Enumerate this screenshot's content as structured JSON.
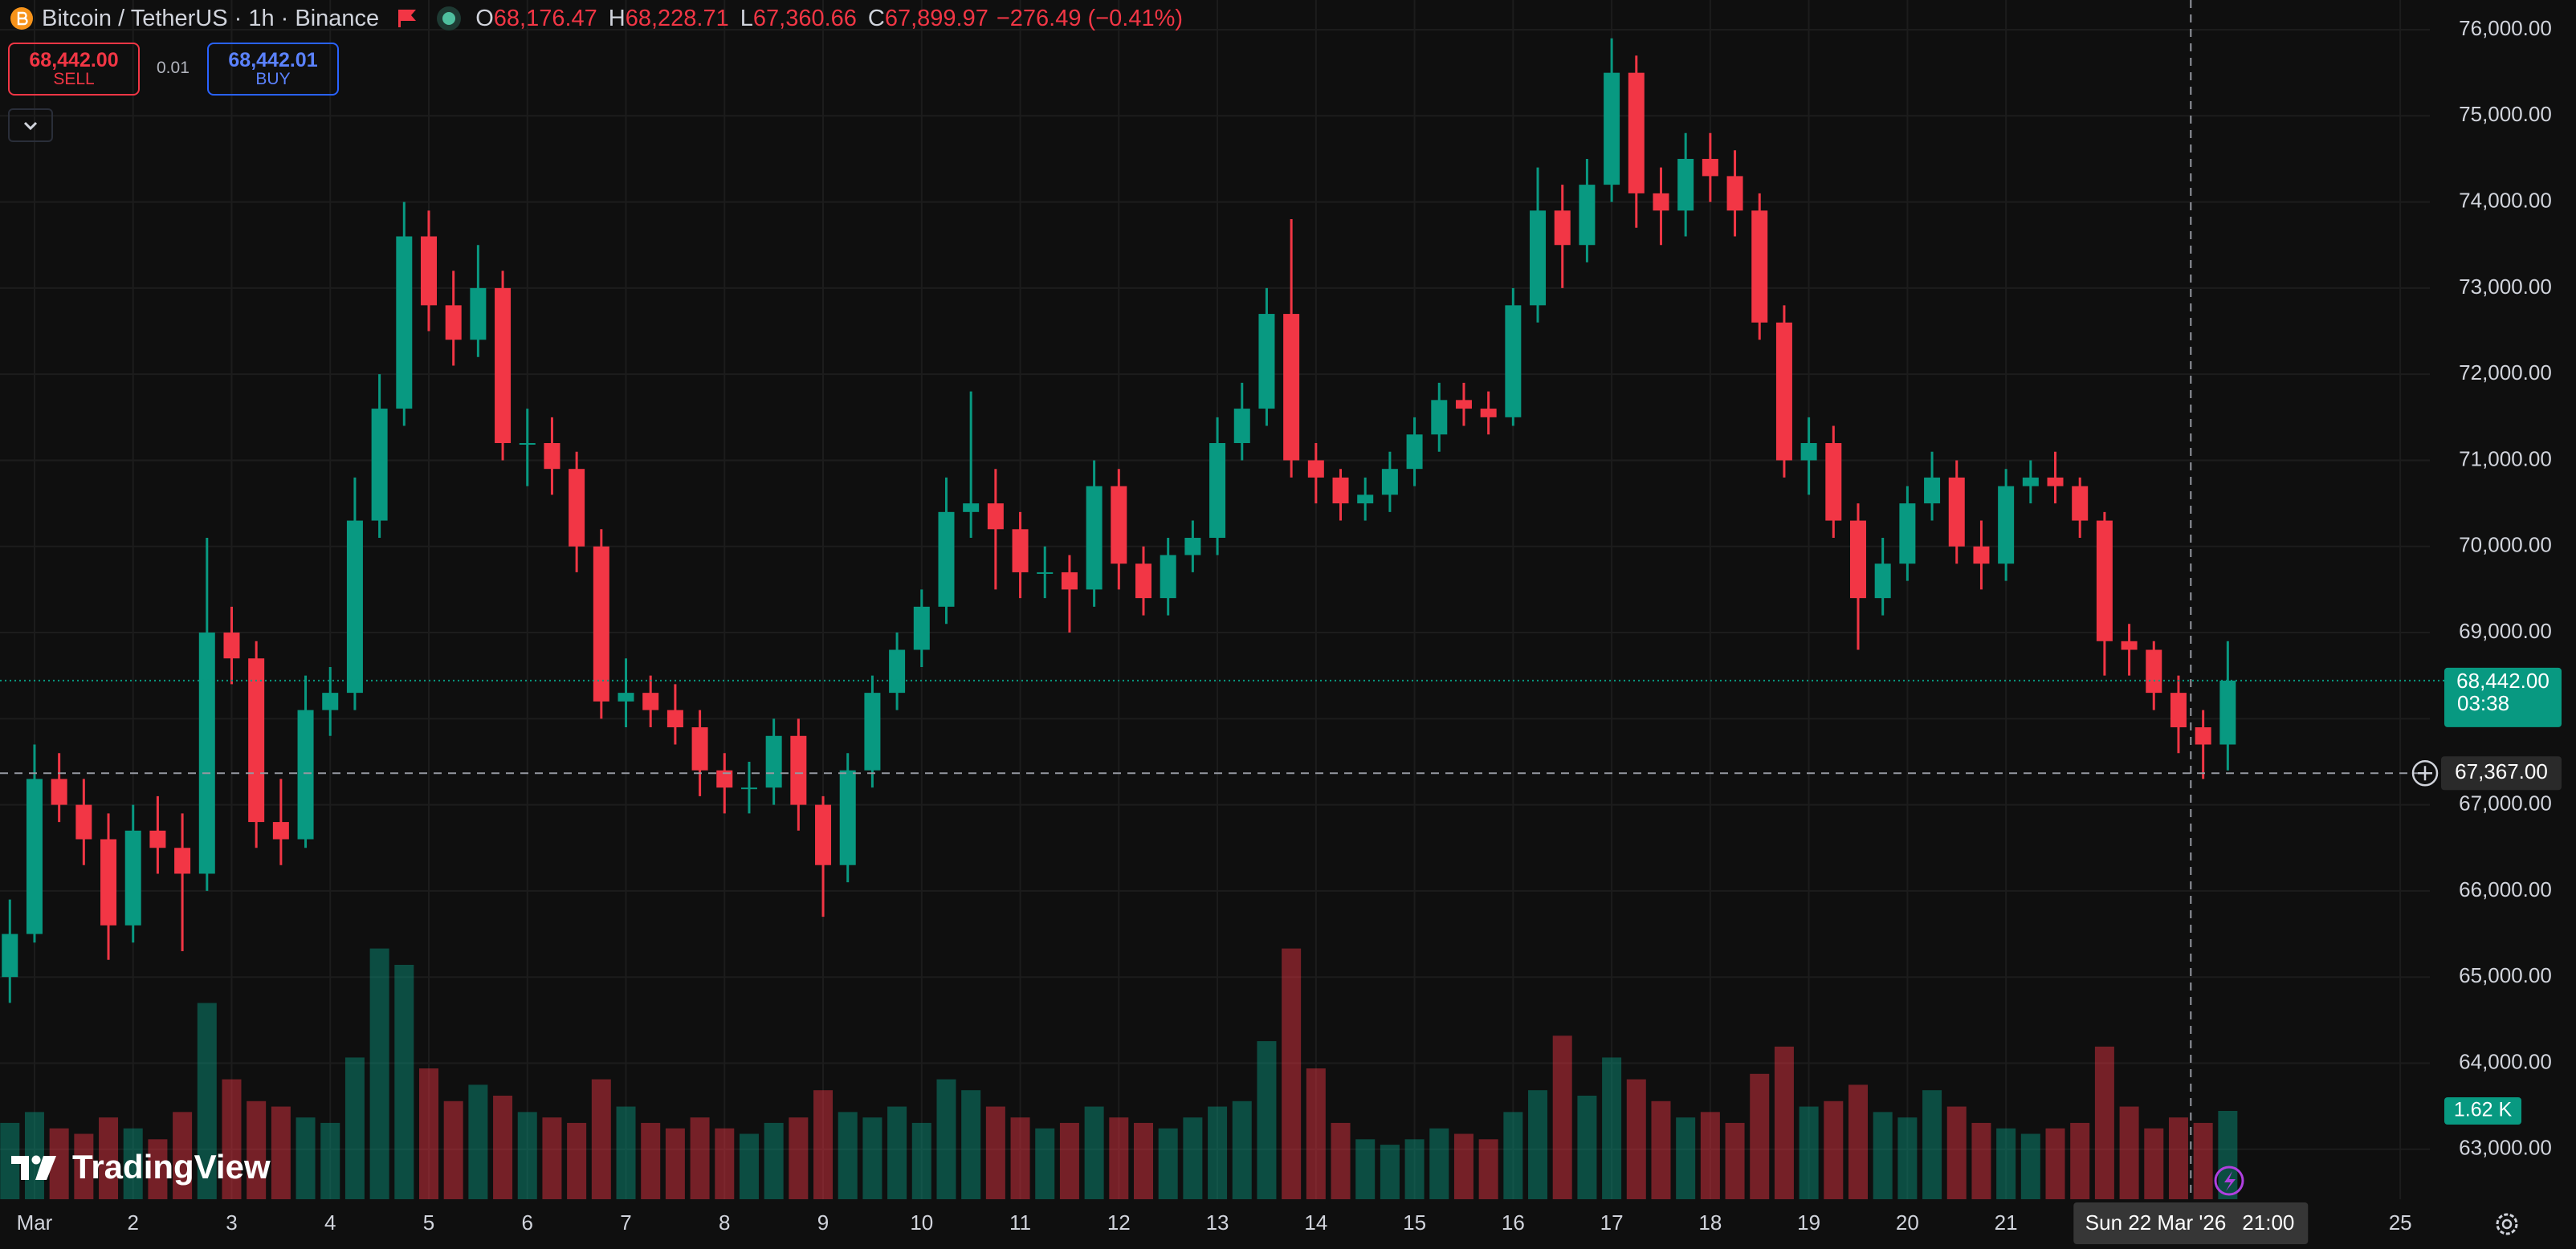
{
  "header": {
    "symbol": "Bitcoin / TetherUS · 1h · Binance",
    "ohlc": [
      {
        "label": "O",
        "value": "68,176.47"
      },
      {
        "label": "H",
        "value": "68,228.71"
      },
      {
        "label": "L",
        "value": "67,360.66"
      },
      {
        "label": "C",
        "value": "67,899.97"
      }
    ],
    "change": "−276.49 (−0.41%)"
  },
  "trade": {
    "sell": {
      "price": "68,442.00",
      "label": "SELL"
    },
    "spread": "0.01",
    "buy": {
      "price": "68,442.01",
      "label": "BUY"
    }
  },
  "branding": "TradingView",
  "chart_data": {
    "type": "candlestick",
    "x": [
      0.75,
      1,
      1.25,
      1.5,
      1.75,
      2,
      2.25,
      2.5,
      2.75,
      3,
      3.25,
      3.5,
      3.75,
      4,
      4.25,
      4.5,
      4.75,
      5,
      5.25,
      5.5,
      5.75,
      6,
      6.25,
      6.5,
      6.75,
      7,
      7.25,
      7.5,
      7.75,
      8,
      8.25,
      8.5,
      8.75,
      9,
      9.25,
      9.5,
      9.75,
      10,
      10.25,
      10.5,
      10.75,
      11,
      11.25,
      11.5,
      11.75,
      12,
      12.25,
      12.5,
      12.75,
      13,
      13.25,
      13.5,
      13.75,
      14,
      14.25,
      14.5,
      14.75,
      15,
      15.25,
      15.5,
      15.75,
      16,
      16.25,
      16.5,
      16.75,
      17,
      17.25,
      17.5,
      17.75,
      18,
      18.25,
      18.5,
      18.75,
      19,
      19.25,
      19.5,
      19.75,
      20,
      20.25,
      20.5,
      20.75,
      21,
      21.25,
      21.5,
      21.75,
      22,
      22.25,
      22.5,
      22.75,
      23,
      23.25
    ],
    "open": [
      65000,
      65500,
      67300,
      67000,
      66600,
      65600,
      66700,
      66500,
      66200,
      69000,
      68700,
      66800,
      66600,
      68100,
      68300,
      70300,
      71600,
      73600,
      72800,
      72400,
      73000,
      71200,
      71200,
      70900,
      70000,
      68200,
      68300,
      68100,
      67900,
      67400,
      67200,
      67200,
      67800,
      67000,
      66300,
      67400,
      68300,
      68800,
      69300,
      70400,
      70500,
      70200,
      69700,
      69700,
      69500,
      70700,
      69800,
      69400,
      69900,
      70100,
      71200,
      71600,
      72700,
      71000,
      70800,
      70500,
      70600,
      70900,
      71300,
      71700,
      71600,
      71500,
      72800,
      73900,
      73500,
      74200,
      75500,
      74100,
      73900,
      74500,
      74300,
      73900,
      72600,
      71000,
      71200,
      70300,
      69400,
      69800,
      70500,
      70800,
      70000,
      69800,
      70700,
      70800,
      70700,
      70300,
      68900,
      68800,
      68300,
      67900,
      67700
    ],
    "high": [
      65900,
      67700,
      67600,
      67300,
      66900,
      67000,
      67100,
      66900,
      70100,
      69300,
      68900,
      67300,
      68500,
      68600,
      70800,
      72000,
      74000,
      73900,
      73200,
      73500,
      73200,
      71600,
      71500,
      71100,
      70200,
      68700,
      68500,
      68400,
      68100,
      67600,
      67500,
      68000,
      68000,
      67100,
      67600,
      68500,
      69000,
      69500,
      70800,
      71800,
      70900,
      70400,
      70000,
      69900,
      71000,
      70900,
      70000,
      70100,
      70300,
      71500,
      71900,
      73000,
      73800,
      71200,
      70900,
      70800,
      71100,
      71500,
      71900,
      71900,
      71800,
      73000,
      74400,
      74200,
      74500,
      75900,
      75700,
      74400,
      74800,
      74800,
      74600,
      74100,
      72800,
      71500,
      71400,
      70500,
      70100,
      70700,
      71100,
      71000,
      70300,
      70900,
      71000,
      71100,
      70800,
      70400,
      69100,
      68900,
      68500,
      68100,
      68900
    ],
    "low": [
      64700,
      65400,
      66800,
      66300,
      65200,
      65400,
      66200,
      65300,
      66000,
      68400,
      66500,
      66300,
      66500,
      67800,
      68100,
      70100,
      71400,
      72500,
      72100,
      72200,
      71000,
      70700,
      70600,
      69700,
      68000,
      67900,
      67900,
      67700,
      67100,
      66900,
      66900,
      67000,
      66700,
      65700,
      66100,
      67200,
      68100,
      68600,
      69100,
      70100,
      69500,
      69400,
      69400,
      69000,
      69300,
      69500,
      69200,
      69200,
      69700,
      69900,
      71000,
      71400,
      70800,
      70500,
      70300,
      70300,
      70400,
      70700,
      71100,
      71400,
      71300,
      71400,
      72600,
      73000,
      73300,
      74000,
      73700,
      73500,
      73600,
      74000,
      73600,
      72400,
      70800,
      70600,
      70100,
      68800,
      69200,
      69600,
      70300,
      69800,
      69500,
      69600,
      70500,
      70500,
      70100,
      68500,
      68500,
      68100,
      67600,
      67300,
      67400
    ],
    "close": [
      65500,
      67300,
      67000,
      66600,
      65600,
      66700,
      66500,
      66200,
      69000,
      68700,
      66800,
      66600,
      68100,
      68300,
      70300,
      71600,
      73600,
      72800,
      72400,
      73000,
      71200,
      71200,
      70900,
      70000,
      68200,
      68300,
      68100,
      67900,
      67400,
      67200,
      67200,
      67800,
      67000,
      66300,
      67400,
      68300,
      68800,
      69300,
      70400,
      70500,
      70200,
      69700,
      69700,
      69500,
      70700,
      69800,
      69400,
      69900,
      70100,
      71200,
      71600,
      72700,
      71000,
      70800,
      70500,
      70600,
      70900,
      71300,
      71700,
      71600,
      71500,
      72800,
      73900,
      73500,
      74200,
      75500,
      74100,
      73900,
      74500,
      74300,
      73900,
      72600,
      71000,
      71200,
      70300,
      69400,
      69800,
      70500,
      70800,
      70000,
      69800,
      70700,
      70800,
      70700,
      70300,
      68900,
      68800,
      68300,
      67900,
      67700,
      68442
    ],
    "volume": [
      1400,
      1600,
      1300,
      1200,
      1500,
      1300,
      1100,
      1600,
      3600,
      2200,
      1800,
      1700,
      1500,
      1400,
      2600,
      4600,
      4300,
      2400,
      1800,
      2100,
      1900,
      1600,
      1500,
      1400,
      2200,
      1700,
      1400,
      1300,
      1500,
      1300,
      1200,
      1400,
      1500,
      2000,
      1600,
      1500,
      1700,
      1400,
      2200,
      2000,
      1700,
      1500,
      1300,
      1400,
      1700,
      1500,
      1400,
      1300,
      1500,
      1700,
      1800,
      2900,
      4600,
      2400,
      1400,
      1100,
      1000,
      1100,
      1300,
      1200,
      1100,
      1600,
      2000,
      3000,
      1900,
      2600,
      2200,
      1800,
      1500,
      1600,
      1400,
      2300,
      2800,
      1700,
      1800,
      2100,
      1600,
      1500,
      2000,
      1700,
      1400,
      1300,
      1200,
      1300,
      1400,
      2800,
      1700,
      1300,
      1500,
      1400,
      1620
    ],
    "up_color": "#089981",
    "down_color": "#f23645",
    "grid": true,
    "xlim": [
      0.65,
      25.3
    ],
    "ylim": [
      62420,
      76345
    ],
    "volume_lim": [
      0,
      22000
    ],
    "xticks": [
      {
        "value": 1,
        "label": "Mar"
      },
      2,
      3,
      4,
      5,
      6,
      7,
      8,
      9,
      10,
      11,
      12,
      13,
      14,
      15,
      16,
      17,
      18,
      19,
      20,
      21,
      25
    ],
    "yticks": [
      {
        "value": 63000,
        "label": "63,000.00"
      },
      {
        "value": 64000,
        "label": "64,000.00"
      },
      {
        "value": 65000,
        "label": "65,000.00"
      },
      {
        "value": 66000,
        "label": "66,000.00"
      },
      {
        "value": 67000,
        "label": "67,000.00"
      },
      {
        "value": 68000,
        "label": "68,000.00"
      },
      {
        "value": 69000,
        "label": "69,000.00"
      },
      {
        "value": 70000,
        "label": "70,000.00"
      },
      {
        "value": 71000,
        "label": "71,000.00"
      },
      {
        "value": 72000,
        "label": "72,000.00"
      },
      {
        "value": 73000,
        "label": "73,000.00"
      },
      {
        "value": 74000,
        "label": "74,000.00"
      },
      {
        "value": 75000,
        "label": "75,000.00"
      },
      {
        "value": 76000,
        "label": "76,000.00"
      }
    ],
    "last_price": {
      "value": 68442,
      "label": "68,442.00"
    },
    "countdown": "03:38",
    "last_volume": {
      "value": 1620,
      "label": "1.62 K"
    },
    "crosshair": {
      "price": {
        "value": 67367,
        "label": "67,367.00"
      },
      "time": {
        "value": 22.875,
        "label": "Sun 22 Mar '26"
      },
      "clock": "21:00"
    }
  }
}
